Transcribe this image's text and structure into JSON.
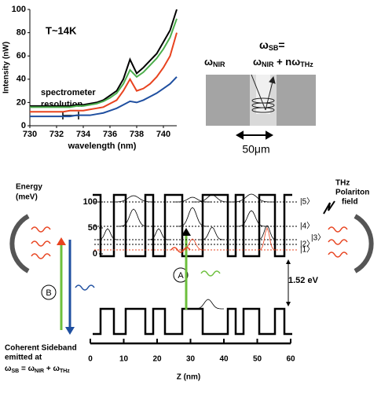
{
  "chart_data": {
    "type": "line",
    "xlabel": "wavelength (nm)",
    "ylabel": "Intensity (nW)",
    "annotations": [
      "T~14K",
      "spectrometer",
      "resolution"
    ],
    "x": [
      730,
      730.5,
      731,
      731.5,
      732,
      732.5,
      733,
      733.5,
      734,
      734.5,
      735,
      735.5,
      736,
      736.5,
      737,
      737.5,
      738,
      738.5,
      739,
      739.5,
      740,
      740.5,
      741
    ],
    "series": [
      {
        "color": "#000000",
        "values": [
          17,
          17,
          17,
          17,
          17,
          17,
          17,
          18,
          18,
          19,
          20,
          22,
          26,
          30,
          40,
          57,
          45,
          50,
          56,
          62,
          72,
          82,
          100
        ]
      },
      {
        "color": "#4cae4c",
        "values": [
          16,
          16,
          16,
          16,
          16,
          16,
          16,
          17,
          17,
          18,
          19,
          21,
          24,
          28,
          36,
          48,
          42,
          46,
          52,
          58,
          66,
          76,
          92
        ]
      },
      {
        "color": "#e8431f",
        "values": [
          12,
          12,
          12,
          12,
          12,
          12,
          13,
          13,
          13,
          14,
          15,
          16,
          19,
          22,
          30,
          40,
          30,
          32,
          36,
          42,
          50,
          60,
          80
        ]
      },
      {
        "color": "#1f4fa0",
        "values": [
          8,
          8,
          8,
          8,
          8,
          8,
          8,
          9,
          9,
          9,
          10,
          11,
          13,
          15,
          18,
          21,
          20,
          22,
          25,
          28,
          32,
          36,
          42
        ]
      }
    ],
    "xlim": [
      730,
      741
    ],
    "xticks": [
      730,
      732,
      734,
      736,
      738,
      740
    ],
    "ylim": [
      0,
      100
    ],
    "yticks": [
      0,
      20,
      40,
      60,
      80,
      100
    ]
  },
  "micrograph": {
    "omega_sb": [
      "ω",
      "SB",
      "="
    ],
    "omega_nir": [
      "ω",
      "NIR"
    ],
    "sum": [
      "ω",
      "NIR",
      " + nω",
      "THz"
    ],
    "scale": "50μm"
  },
  "band_diagram": {
    "ylabel": [
      "Energy",
      "(meV)"
    ],
    "ylim": [
      0,
      100
    ],
    "yticks": [
      0,
      50,
      100
    ],
    "xlabel": "Z (nm)",
    "xlim": [
      0,
      60
    ],
    "xticks": [
      0,
      10,
      20,
      30,
      40,
      50,
      60
    ],
    "states": [
      "|5〉",
      "|4〉",
      "|3〉",
      "|2〉",
      "|1〉"
    ],
    "gap": "1.52 eV",
    "thz": [
      "THz",
      "Polariton",
      "field"
    ],
    "labels": [
      "A",
      "B"
    ],
    "sideband": [
      "Coherent Sideband",
      "emitted at"
    ],
    "formula": [
      "ω",
      "SB",
      " = ω",
      "NIR",
      " + ω",
      "THz"
    ]
  }
}
